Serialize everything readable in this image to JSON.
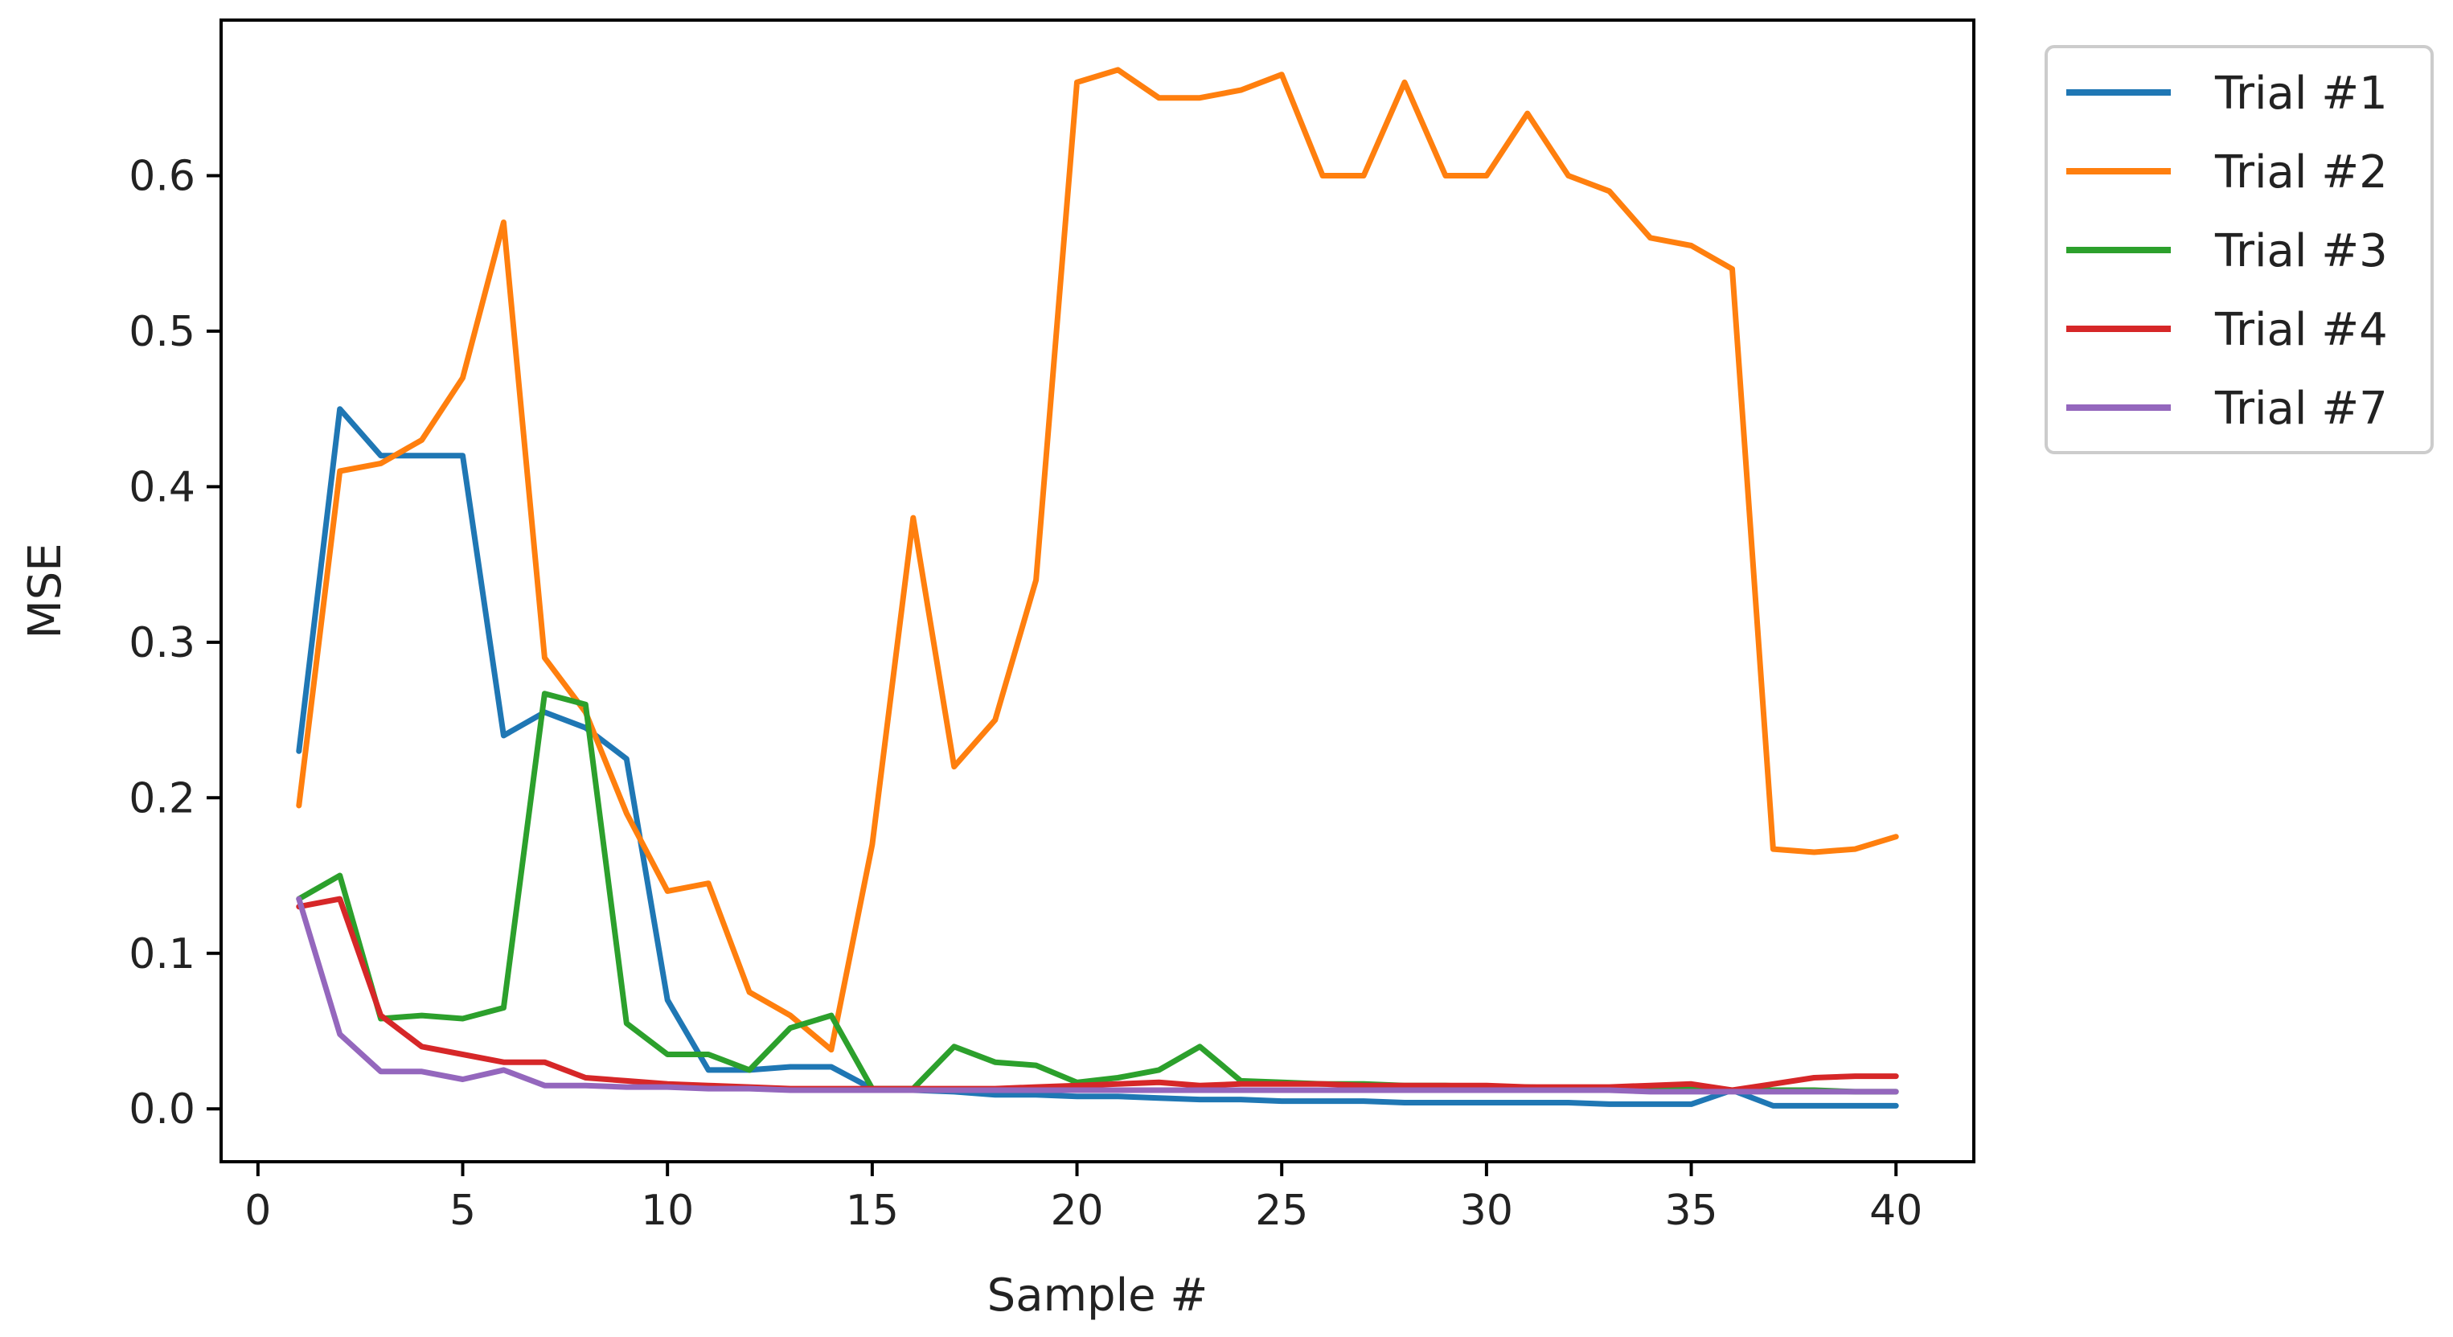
{
  "chart_data": {
    "type": "line",
    "title": "",
    "xlabel": "Sample #",
    "ylabel": "MSE",
    "xlim": [
      -0.9,
      41.9
    ],
    "ylim": [
      -0.034,
      0.7
    ],
    "grid": false,
    "legend_position": "outside-top-right",
    "x_ticks": [
      0,
      5,
      10,
      15,
      20,
      25,
      30,
      35,
      40
    ],
    "x_tick_labels": [
      "0",
      "5",
      "10",
      "15",
      "20",
      "25",
      "30",
      "35",
      "40"
    ],
    "y_ticks": [
      0.0,
      0.1,
      0.2,
      0.3,
      0.4,
      0.5,
      0.6
    ],
    "y_tick_labels": [
      "0.0",
      "0.1",
      "0.2",
      "0.3",
      "0.4",
      "0.5",
      "0.6"
    ],
    "x": [
      1,
      2,
      3,
      4,
      5,
      6,
      7,
      8,
      9,
      10,
      11,
      12,
      13,
      14,
      15,
      16,
      17,
      18,
      19,
      20,
      21,
      22,
      23,
      24,
      25,
      26,
      27,
      28,
      29,
      30,
      31,
      32,
      33,
      34,
      35,
      36,
      37,
      38,
      39,
      40
    ],
    "series": [
      {
        "name": "Trial #1",
        "color": "#1f77b4",
        "values": [
          0.23,
          0.45,
          0.42,
          0.42,
          0.42,
          0.24,
          0.255,
          0.245,
          0.225,
          0.07,
          0.025,
          0.025,
          0.027,
          0.027,
          0.013,
          0.012,
          0.011,
          0.009,
          0.009,
          0.008,
          0.008,
          0.007,
          0.006,
          0.006,
          0.005,
          0.005,
          0.005,
          0.004,
          0.004,
          0.004,
          0.004,
          0.004,
          0.003,
          0.003,
          0.003,
          0.012,
          0.002,
          0.002,
          0.002,
          0.002
        ]
      },
      {
        "name": "Trial #2",
        "color": "#ff7f0e",
        "values": [
          0.195,
          0.41,
          0.415,
          0.43,
          0.47,
          0.57,
          0.29,
          0.255,
          0.19,
          0.14,
          0.145,
          0.075,
          0.06,
          0.038,
          0.17,
          0.38,
          0.22,
          0.25,
          0.34,
          0.66,
          0.668,
          0.65,
          0.65,
          0.655,
          0.665,
          0.6,
          0.6,
          0.66,
          0.6,
          0.6,
          0.64,
          0.6,
          0.59,
          0.56,
          0.555,
          0.54,
          0.167,
          0.165,
          0.167,
          0.175
        ]
      },
      {
        "name": "Trial #3",
        "color": "#2ca02c",
        "values": [
          0.135,
          0.15,
          0.058,
          0.06,
          0.058,
          0.065,
          0.267,
          0.26,
          0.055,
          0.035,
          0.035,
          0.025,
          0.052,
          0.06,
          0.013,
          0.013,
          0.04,
          0.03,
          0.028,
          0.017,
          0.02,
          0.025,
          0.04,
          0.018,
          0.017,
          0.016,
          0.016,
          0.015,
          0.015,
          0.014,
          0.014,
          0.013,
          0.013,
          0.013,
          0.013,
          0.012,
          0.012,
          0.012,
          0.011,
          0.011
        ]
      },
      {
        "name": "Trial #4",
        "color": "#d62728",
        "values": [
          0.13,
          0.135,
          0.06,
          0.04,
          0.035,
          0.03,
          0.03,
          0.02,
          0.018,
          0.016,
          0.015,
          0.014,
          0.013,
          0.013,
          0.013,
          0.013,
          0.013,
          0.013,
          0.014,
          0.015,
          0.016,
          0.017,
          0.015,
          0.016,
          0.016,
          0.016,
          0.015,
          0.015,
          0.015,
          0.015,
          0.014,
          0.014,
          0.014,
          0.015,
          0.016,
          0.012,
          0.016,
          0.02,
          0.021,
          0.021
        ]
      },
      {
        "name": "Trial #7",
        "color": "#9467bd",
        "values": [
          0.135,
          0.048,
          0.024,
          0.024,
          0.019,
          0.025,
          0.015,
          0.015,
          0.014,
          0.014,
          0.013,
          0.013,
          0.012,
          0.012,
          0.012,
          0.012,
          0.012,
          0.012,
          0.012,
          0.012,
          0.012,
          0.012,
          0.012,
          0.012,
          0.012,
          0.012,
          0.012,
          0.012,
          0.012,
          0.012,
          0.012,
          0.012,
          0.012,
          0.011,
          0.011,
          0.011,
          0.011,
          0.011,
          0.011,
          0.011
        ]
      }
    ]
  }
}
